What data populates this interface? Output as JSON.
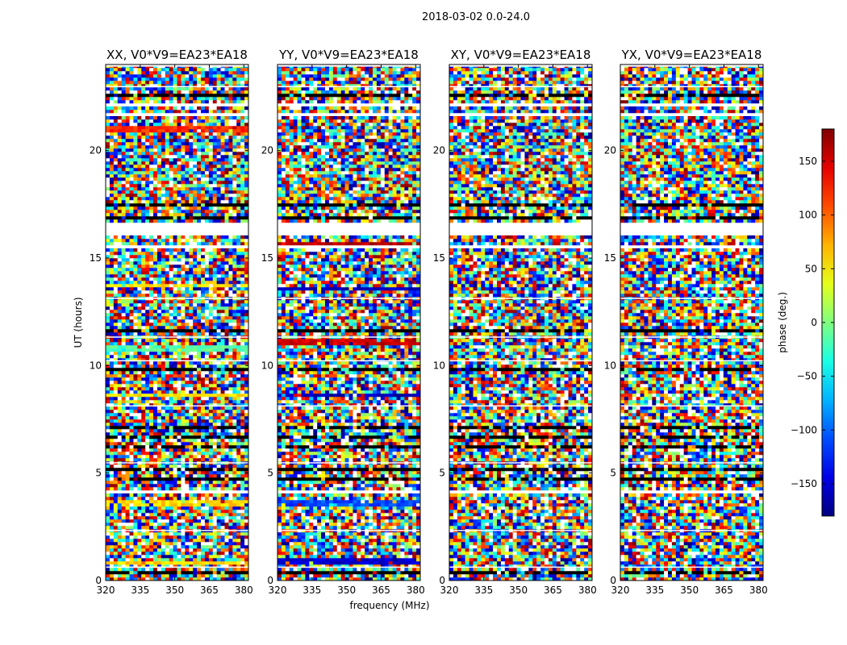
{
  "suptitle": "2018-03-02 0.0-24.0",
  "chart_data": {
    "type": "heatmap",
    "panels": [
      {
        "title": "XX, V0*V9=EA23*EA18",
        "polarization": "XX",
        "features": [
          {
            "t": 0.85,
            "value": 60
          },
          {
            "t": 3.6,
            "value": 60
          },
          {
            "t": 8.6,
            "value": 55
          },
          {
            "t": 10.8,
            "value": -15
          },
          {
            "t": 13.7,
            "value": 55
          },
          {
            "t": 21.0,
            "value": 120
          }
        ]
      },
      {
        "title": "YY, V0*V9=EA23*EA18",
        "polarization": "YY",
        "features": [
          {
            "t": 0.9,
            "value": -150
          },
          {
            "t": 3.6,
            "value": -110
          },
          {
            "t": 8.6,
            "value": -160
          },
          {
            "t": 11.1,
            "value": 150
          },
          {
            "t": 13.6,
            "value": -160
          },
          {
            "t": 15.6,
            "value": 160
          }
        ]
      },
      {
        "title": "XY, V0*V9=EA23*EA18",
        "polarization": "XY",
        "features": []
      },
      {
        "title": "YX, V0*V9=EA23*EA18",
        "polarization": "YX",
        "features": []
      }
    ],
    "x": {
      "label": "frequency (MHz)",
      "range": [
        320,
        382
      ],
      "ticks": [
        320,
        335,
        350,
        365,
        380
      ]
    },
    "y": {
      "label": "UT (hours)",
      "range": [
        0,
        24
      ],
      "ticks": [
        0,
        5,
        10,
        15,
        20
      ]
    },
    "colorbar": {
      "label": "phase (deg.)",
      "range": [
        -180,
        180
      ],
      "ticks": [
        -150,
        -100,
        -50,
        0,
        50,
        100,
        150
      ],
      "tick_labels": [
        "−150",
        "−100",
        "−50",
        "0",
        "50",
        "100",
        "150"
      ],
      "colormap": "jet"
    },
    "flagged_hours": [
      [
        16.1,
        16.7
      ],
      [
        15.5,
        15.6
      ],
      [
        13.3,
        13.4
      ],
      [
        12.3,
        12.35
      ],
      [
        9.4,
        9.5
      ],
      [
        7.3,
        7.38
      ],
      [
        4.1,
        4.15
      ],
      [
        3.9,
        3.95
      ],
      [
        2.7,
        2.75
      ],
      [
        1.5,
        1.55
      ],
      [
        22.1,
        22.18
      ],
      [
        21.6,
        21.7
      ],
      [
        19.6,
        19.65
      ]
    ],
    "dark_bands": [
      [
        22.45,
        22.6
      ],
      [
        16.8,
        16.95
      ],
      [
        7.1,
        7.2
      ],
      [
        6.6,
        6.7
      ],
      [
        6.2,
        6.3
      ],
      [
        5.1,
        5.2
      ],
      [
        4.7,
        4.85
      ],
      [
        0.3,
        0.38
      ],
      [
        18.1,
        18.2
      ],
      [
        17.4,
        17.5
      ],
      [
        11.6,
        11.65
      ],
      [
        9.8,
        9.85
      ]
    ],
    "missing_rows": [
      [
        23.9,
        24.0
      ],
      [
        22.95,
        23.0
      ],
      [
        13.1,
        13.15
      ],
      [
        11.3,
        11.35
      ],
      [
        10.2,
        10.25
      ],
      [
        8.1,
        8.15
      ],
      [
        5.45,
        5.5
      ],
      [
        2.3,
        2.35
      ],
      [
        0.6,
        0.65
      ]
    ]
  }
}
